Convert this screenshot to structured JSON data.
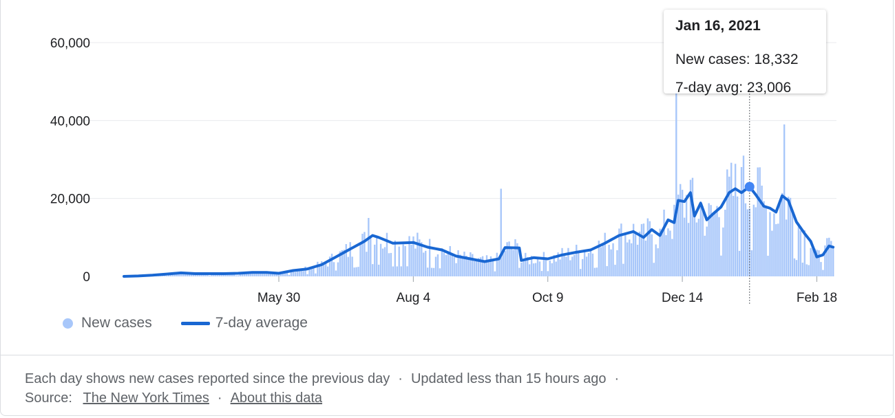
{
  "chart_data": {
    "type": "bar",
    "subtype": "bar+line",
    "title": "",
    "xlabel": "",
    "ylabel": "",
    "ylim": [
      0,
      60000
    ],
    "y_ticks": [
      "0",
      "20,000",
      "40,000",
      "60,000"
    ],
    "y_tick_values": [
      0,
      20000,
      40000,
      60000
    ],
    "x_ticks": [
      {
        "label": "May 30",
        "date": "2020-05-30"
      },
      {
        "label": "Aug 4",
        "date": "2020-08-04"
      },
      {
        "label": "Oct 9",
        "date": "2020-10-09"
      },
      {
        "label": "Dec 14",
        "date": "2020-12-14"
      },
      {
        "label": "Feb 18",
        "date": "2021-02-18"
      }
    ],
    "grid": true,
    "legend_position": "bottom-left",
    "series": [
      {
        "name": "New cases",
        "kind": "bar",
        "color": "#a8c7fa"
      },
      {
        "name": "7-day average",
        "kind": "line",
        "color": "#1967d2"
      }
    ],
    "avg_points": [
      [
        "2020-03-15",
        0
      ],
      [
        "2020-03-22",
        100
      ],
      [
        "2020-03-29",
        300
      ],
      [
        "2020-04-05",
        600
      ],
      [
        "2020-04-12",
        900
      ],
      [
        "2020-04-19",
        700
      ],
      [
        "2020-04-26",
        700
      ],
      [
        "2020-05-03",
        700
      ],
      [
        "2020-05-10",
        800
      ],
      [
        "2020-05-17",
        1000
      ],
      [
        "2020-05-24",
        1000
      ],
      [
        "2020-05-30",
        800
      ],
      [
        "2020-06-06",
        1500
      ],
      [
        "2020-06-13",
        1900
      ],
      [
        "2020-06-20",
        3000
      ],
      [
        "2020-06-27",
        5000
      ],
      [
        "2020-07-04",
        7000
      ],
      [
        "2020-07-11",
        9000
      ],
      [
        "2020-07-15",
        10500
      ],
      [
        "2020-07-18",
        10000
      ],
      [
        "2020-07-25",
        8500
      ],
      [
        "2020-08-04",
        8700
      ],
      [
        "2020-08-11",
        7500
      ],
      [
        "2020-08-18",
        6800
      ],
      [
        "2020-08-25",
        5200
      ],
      [
        "2020-09-01",
        4500
      ],
      [
        "2020-09-08",
        3800
      ],
      [
        "2020-09-15",
        4500
      ],
      [
        "2020-09-18",
        7400
      ],
      [
        "2020-09-25",
        7300
      ],
      [
        "2020-09-26",
        4100
      ],
      [
        "2020-10-02",
        4800
      ],
      [
        "2020-10-09",
        4500
      ],
      [
        "2020-10-16",
        5500
      ],
      [
        "2020-10-23",
        6200
      ],
      [
        "2020-10-30",
        6800
      ],
      [
        "2020-11-06",
        8500
      ],
      [
        "2020-11-13",
        10500
      ],
      [
        "2020-11-20",
        11500
      ],
      [
        "2020-11-25",
        10000
      ],
      [
        "2020-11-29",
        12000
      ],
      [
        "2020-12-03",
        10500
      ],
      [
        "2020-12-07",
        14500
      ],
      [
        "2020-12-10",
        13800
      ],
      [
        "2020-12-12",
        19500
      ],
      [
        "2020-12-15",
        19200
      ],
      [
        "2020-12-18",
        21500
      ],
      [
        "2020-12-20",
        15500
      ],
      [
        "2020-12-23",
        18800
      ],
      [
        "2020-12-26",
        14500
      ],
      [
        "2020-12-29",
        16000
      ],
      [
        "2021-01-02",
        17800
      ],
      [
        "2021-01-06",
        21500
      ],
      [
        "2021-01-09",
        22500
      ],
      [
        "2021-01-12",
        21500
      ],
      [
        "2021-01-16",
        23006
      ],
      [
        "2021-01-19",
        21000
      ],
      [
        "2021-01-23",
        18000
      ],
      [
        "2021-01-26",
        17500
      ],
      [
        "2021-01-29",
        16500
      ],
      [
        "2021-02-01",
        20700
      ],
      [
        "2021-02-04",
        19500
      ],
      [
        "2021-02-08",
        14000
      ],
      [
        "2021-02-12",
        11000
      ],
      [
        "2021-02-15",
        9000
      ],
      [
        "2021-02-18",
        5000
      ],
      [
        "2021-02-21",
        5500
      ],
      [
        "2021-02-24",
        7800
      ],
      [
        "2021-02-26",
        7500
      ]
    ],
    "spikes": [
      [
        "2020-07-13",
        15000
      ],
      [
        "2020-09-16",
        22500
      ],
      [
        "2020-12-11",
        47000
      ],
      [
        "2021-01-13",
        31000
      ],
      [
        "2021-01-21",
        28000
      ],
      [
        "2021-02-02",
        39000
      ]
    ],
    "last_date": "2021-02-26",
    "highlight": {
      "date": "2021-01-16",
      "new_cases": 18332,
      "avg": 23006
    }
  },
  "tooltip": {
    "date": "Jan 16, 2021",
    "new_cases": "New cases: 18,332",
    "avg": "7-day avg: 23,006"
  },
  "legend": {
    "new_cases": "New cases",
    "avg": "7-day average"
  },
  "footer": {
    "line1_a": "Each day shows new cases reported since the previous day",
    "sep": "·",
    "line1_b": "Updated less than 15 hours ago",
    "source_label": "Source:",
    "source_link": "The New York Times",
    "about_link": "About this data"
  }
}
